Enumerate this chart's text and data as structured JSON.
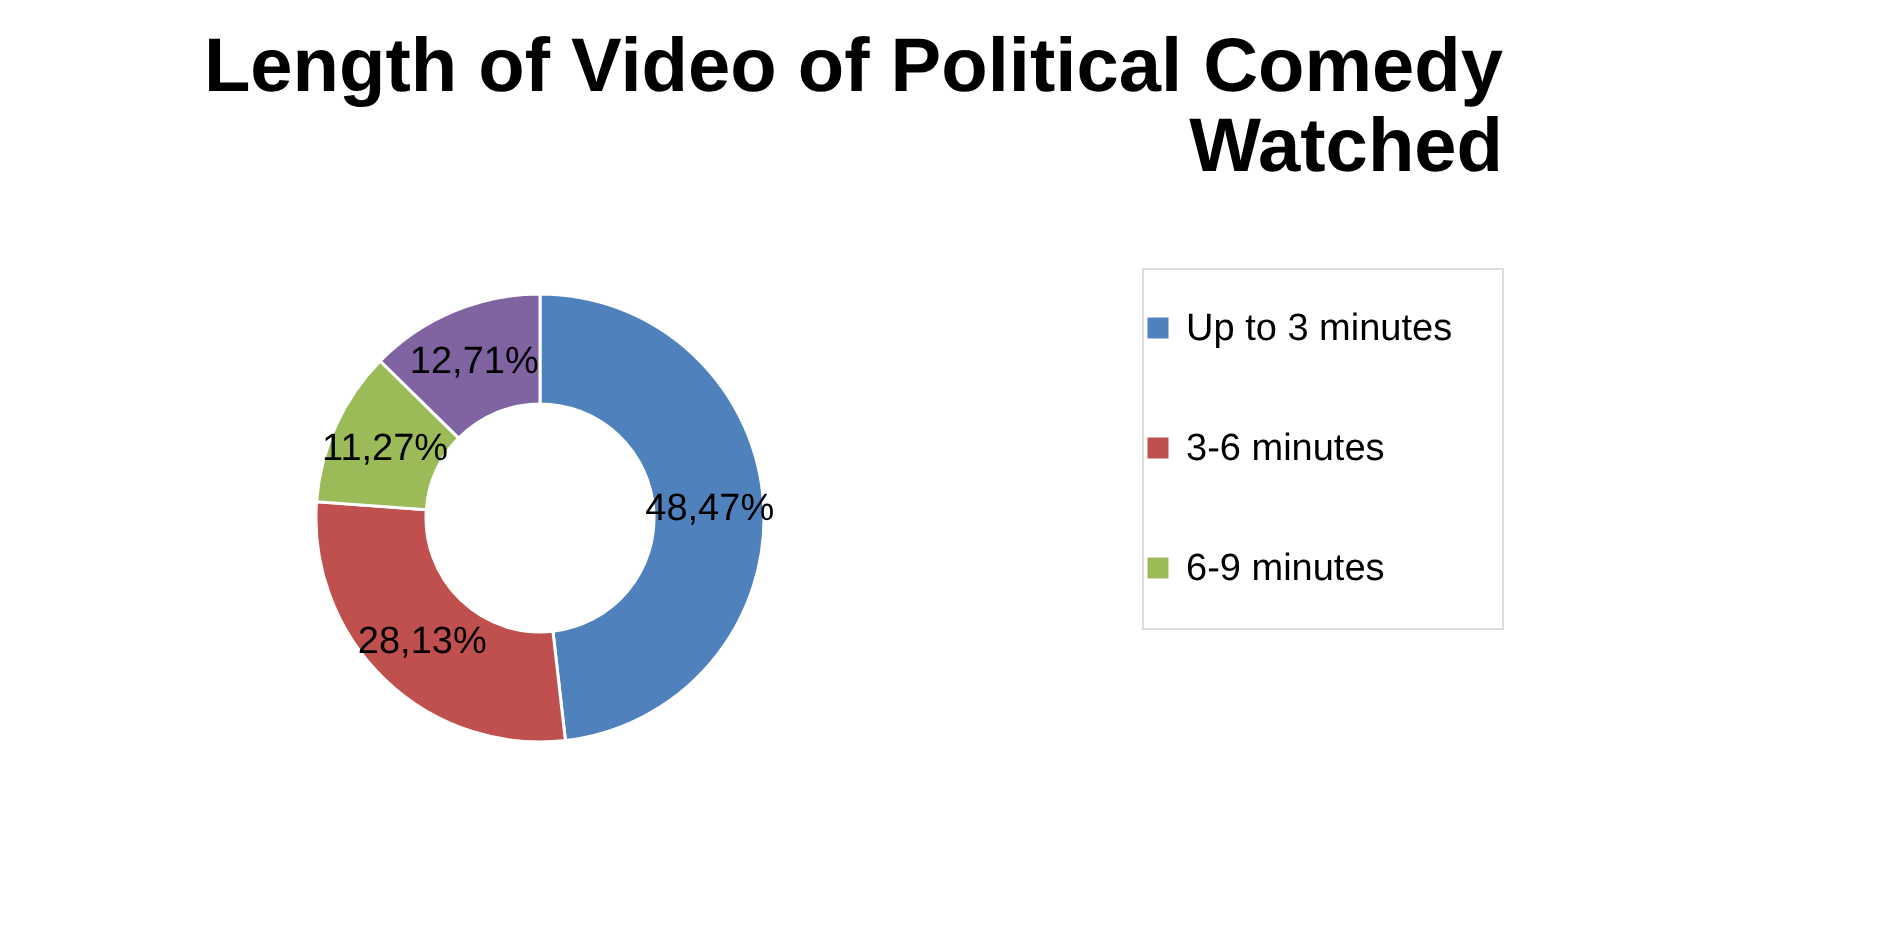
{
  "chart_data": {
    "type": "donut",
    "title": "Length of Video of Political Comedy Watched",
    "categories": [
      "Up to 3 minutes",
      "3-6 minutes",
      "6-9 minutes",
      null
    ],
    "values": [
      48.47,
      28.13,
      11.27,
      12.71
    ],
    "colors": [
      "#4f81bd",
      "#c0504d",
      "#9bbb59",
      "#8064a2"
    ],
    "value_labels": [
      "48,47%",
      "28,13%",
      "11,27%",
      "12,71%"
    ],
    "legend": "right"
  }
}
